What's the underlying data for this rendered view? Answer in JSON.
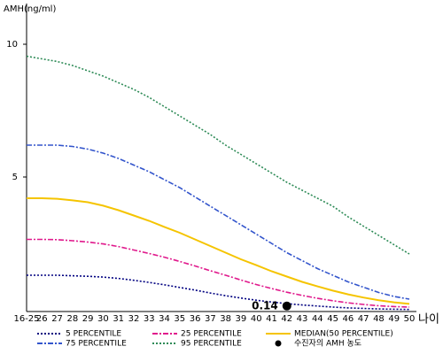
{
  "chart_data": {
    "type": "line",
    "y_label": "AMH(ng/ml)",
    "x_label": "나이",
    "categories": [
      "16-25",
      "26",
      "27",
      "28",
      "29",
      "30",
      "31",
      "32",
      "33",
      "34",
      "35",
      "36",
      "37",
      "38",
      "39",
      "40",
      "41",
      "42",
      "43",
      "44",
      "45",
      "46",
      "47",
      "48",
      "49",
      "50"
    ],
    "series": [
      {
        "name": " 5 PERCENTILE",
        "color": "#000080",
        "dash": "dotted",
        "values": [
          1.3,
          1.3,
          1.3,
          1.28,
          1.26,
          1.23,
          1.18,
          1.11,
          1.03,
          0.94,
          0.84,
          0.74,
          0.63,
          0.53,
          0.44,
          0.36,
          0.29,
          0.23,
          0.18,
          0.14,
          0.1,
          0.07,
          0.05,
          0.03,
          0.02,
          0.01
        ]
      },
      {
        "name": "75 PERCENTILE",
        "color": "#3355cc",
        "dash": "dash-dot",
        "values": [
          6.2,
          6.2,
          6.2,
          6.15,
          6.05,
          5.9,
          5.7,
          5.45,
          5.2,
          4.9,
          4.6,
          4.25,
          3.9,
          3.55,
          3.2,
          2.85,
          2.5,
          2.15,
          1.85,
          1.55,
          1.3,
          1.05,
          0.85,
          0.65,
          0.5,
          0.4
        ]
      },
      {
        "name": "25 PERCENTILE",
        "color": "#e0198c",
        "dash": "dash-dot",
        "values": [
          2.65,
          2.65,
          2.64,
          2.6,
          2.55,
          2.48,
          2.38,
          2.25,
          2.12,
          1.98,
          1.82,
          1.65,
          1.47,
          1.3,
          1.12,
          0.95,
          0.8,
          0.66,
          0.54,
          0.43,
          0.34,
          0.26,
          0.2,
          0.15,
          0.12,
          0.1
        ]
      },
      {
        "name": "95 PERCENTILE",
        "color": "#2e8b57",
        "dash": "dotted",
        "values": [
          9.55,
          9.45,
          9.35,
          9.2,
          9.0,
          8.8,
          8.55,
          8.3,
          8.0,
          7.65,
          7.3,
          6.95,
          6.6,
          6.2,
          5.85,
          5.5,
          5.15,
          4.8,
          4.5,
          4.2,
          3.9,
          3.5,
          3.15,
          2.8,
          2.45,
          2.1
        ]
      },
      {
        "name": "MEDIAN(50 PERCENTILE)",
        "color": "#f5c400",
        "dash": "solid",
        "values": [
          4.2,
          4.2,
          4.18,
          4.12,
          4.05,
          3.92,
          3.75,
          3.55,
          3.35,
          3.12,
          2.9,
          2.65,
          2.4,
          2.15,
          1.9,
          1.68,
          1.45,
          1.25,
          1.05,
          0.88,
          0.72,
          0.58,
          0.46,
          0.36,
          0.28,
          0.22
        ]
      }
    ],
    "marker": {
      "name": "수진자의 AMH 농도",
      "x": "42",
      "value": 0.14,
      "color": "#000000"
    },
    "ylim": [
      0,
      11.6
    ],
    "yticks": [
      5,
      10
    ]
  }
}
